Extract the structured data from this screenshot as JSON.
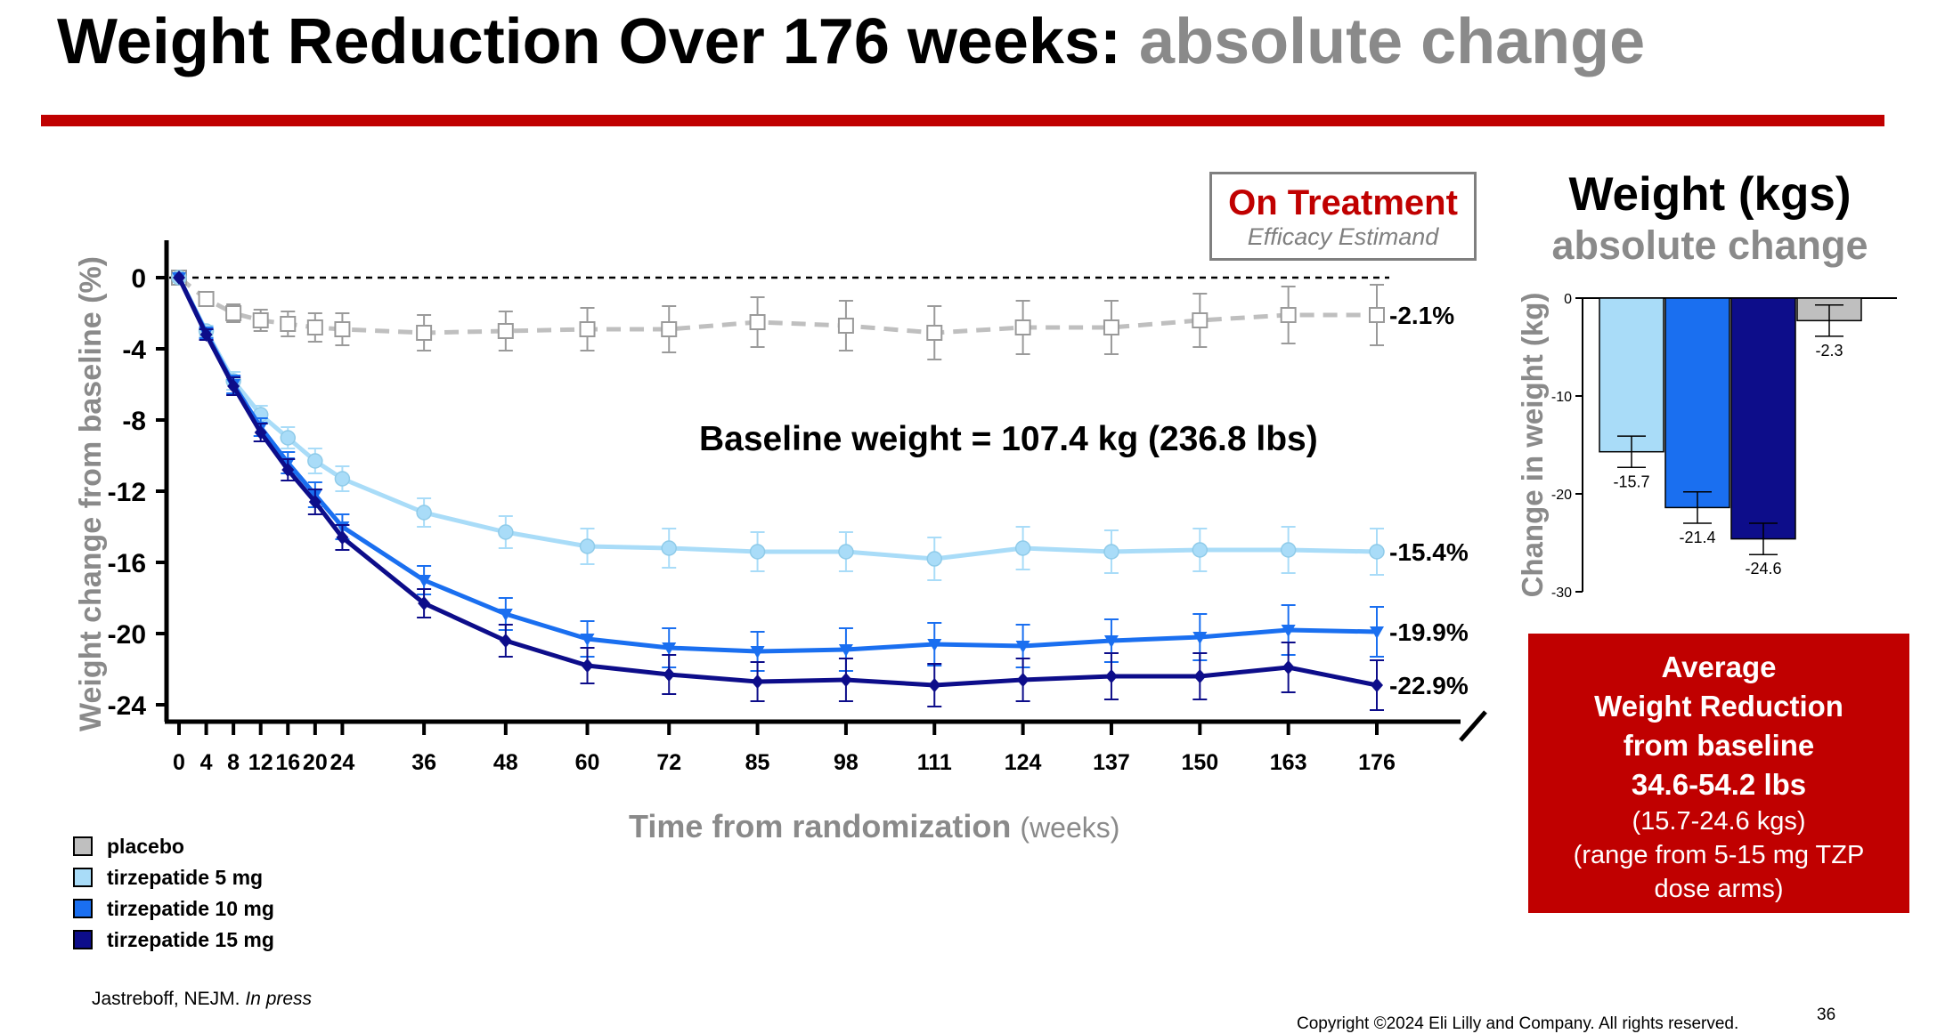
{
  "title": {
    "main": "Weight Reduction Over 176 weeks:",
    "sub": "absolute change"
  },
  "colors": {
    "accent": "#c00000",
    "placebo": "#bfbfbf",
    "tzp5": "#a9dcf8",
    "tzp10": "#1a6ff0",
    "tzp15": "#0d0d8a",
    "title_grey": "#8a8a8a"
  },
  "treatment_box": {
    "main": "On Treatment",
    "sub": "Efficacy Estimand"
  },
  "baseline_note": "Baseline weight = 107.4 kg (236.8 lbs)",
  "x_axis_title": {
    "main": "Time from randomization",
    "unit": "(weeks)"
  },
  "legend": [
    {
      "label": "placebo",
      "color": "#bfbfbf"
    },
    {
      "label": "tirzepatide  5 mg",
      "color": "#a9dcf8"
    },
    {
      "label": "tirzepatide  10 mg",
      "color": "#1a6ff0"
    },
    {
      "label": "tirzepatide  15 mg",
      "color": "#0d0d8a"
    }
  ],
  "side_title": {
    "main": "Weight (kgs)",
    "sub": "absolute change"
  },
  "summary": {
    "line1": "Average",
    "line2": "Weight Reduction",
    "line3": "from baseline",
    "line4": "34.6-54.2 lbs",
    "line5": "(15.7-24.6 kgs)",
    "line6": "(range from 5-15 mg TZP",
    "line7": "dose arms)"
  },
  "citation": {
    "author": "Jastreboff, NEJM.",
    "status": "In press"
  },
  "copyright": "Copyright ©2024 Eli Lilly and Company. All rights reserved.",
  "page_number": "36",
  "chart_data": [
    {
      "type": "line",
      "title": "",
      "xlabel": "Time from randomization (weeks)",
      "ylabel": "Weight change from baseline (%)",
      "ylim": [
        -26,
        1
      ],
      "y_ticks": [
        0,
        -4,
        -8,
        -12,
        -16,
        -20,
        -24
      ],
      "y_tick_labels": [
        "0",
        "-4",
        "-8",
        "-12",
        "-16",
        "-20",
        "-24"
      ],
      "x": [
        0,
        4,
        8,
        12,
        16,
        20,
        24,
        36,
        48,
        60,
        72,
        85,
        98,
        111,
        124,
        137,
        150,
        163,
        176
      ],
      "x_tick_labels": [
        "0",
        "4",
        "8",
        "12",
        "16",
        "20",
        "24",
        "36",
        "48",
        "60",
        "72",
        "85",
        "98",
        "111",
        "124",
        "137",
        "150",
        "163",
        "176"
      ],
      "reference_line": 0,
      "series": [
        {
          "name": "placebo",
          "color": "#bfbfbf",
          "dashed": true,
          "marker": "square-open",
          "values": [
            0,
            -1.2,
            -2.0,
            -2.4,
            -2.6,
            -2.8,
            -2.9,
            -3.1,
            -3.0,
            -2.9,
            -2.9,
            -2.5,
            -2.7,
            -3.1,
            -2.8,
            -2.8,
            -2.4,
            -2.1,
            -2.1
          ],
          "errors": [
            0,
            0.4,
            0.5,
            0.6,
            0.7,
            0.8,
            0.9,
            1.0,
            1.1,
            1.2,
            1.3,
            1.4,
            1.4,
            1.5,
            1.5,
            1.5,
            1.5,
            1.6,
            1.7
          ],
          "end_label": "-2.1%"
        },
        {
          "name": "tirzepatide  5 mg",
          "color": "#a9dcf8",
          "dashed": false,
          "marker": "circle",
          "values": [
            0,
            -3.0,
            -5.8,
            -7.7,
            -9.0,
            -10.3,
            -11.3,
            -13.2,
            -14.3,
            -15.1,
            -15.2,
            -15.4,
            -15.4,
            -15.8,
            -15.2,
            -15.4,
            -15.3,
            -15.3,
            -15.4
          ],
          "errors": [
            0,
            0.3,
            0.5,
            0.5,
            0.6,
            0.7,
            0.7,
            0.8,
            0.9,
            1.0,
            1.1,
            1.1,
            1.1,
            1.2,
            1.2,
            1.2,
            1.2,
            1.3,
            1.3
          ],
          "end_label": "-15.4%"
        },
        {
          "name": "tirzepatide  10 mg",
          "color": "#1a6ff0",
          "dashed": false,
          "marker": "triangle-down",
          "values": [
            0,
            -3.1,
            -6.0,
            -8.4,
            -10.4,
            -12.2,
            -14.0,
            -17.0,
            -18.9,
            -20.3,
            -20.8,
            -21.0,
            -20.9,
            -20.6,
            -20.7,
            -20.4,
            -20.2,
            -19.8,
            -19.9
          ],
          "errors": [
            0,
            0.3,
            0.5,
            0.5,
            0.6,
            0.7,
            0.7,
            0.8,
            0.9,
            1.0,
            1.1,
            1.1,
            1.2,
            1.2,
            1.2,
            1.2,
            1.3,
            1.4,
            1.4
          ],
          "end_label": "-19.9%"
        },
        {
          "name": "tirzepatide  15 mg",
          "color": "#0d0d8a",
          "dashed": false,
          "marker": "diamond",
          "values": [
            0,
            -3.2,
            -6.1,
            -8.7,
            -10.8,
            -12.6,
            -14.6,
            -18.3,
            -20.4,
            -21.8,
            -22.3,
            -22.7,
            -22.6,
            -22.9,
            -22.6,
            -22.4,
            -22.4,
            -21.9,
            -22.9
          ],
          "errors": [
            0,
            0.3,
            0.5,
            0.5,
            0.6,
            0.7,
            0.7,
            0.8,
            0.9,
            1.0,
            1.1,
            1.1,
            1.2,
            1.2,
            1.2,
            1.3,
            1.3,
            1.4,
            1.4
          ],
          "end_label": "-22.9%"
        }
      ]
    },
    {
      "type": "bar",
      "title": "",
      "ylabel": "Change in weight (kg)",
      "ylim": [
        -30,
        0
      ],
      "y_ticks": [
        0,
        -10,
        -20,
        -30
      ],
      "y_tick_labels": [
        "0",
        "-10",
        "-20",
        "-30"
      ],
      "categories": [
        "tirzepatide  5 mg",
        "tirzepatide  10 mg",
        "tirzepatide  15 mg",
        "placebo"
      ],
      "values": [
        -15.7,
        -21.4,
        -24.6,
        -2.3
      ],
      "errors": [
        1.6,
        1.6,
        1.6,
        1.6
      ],
      "value_labels": [
        "-15.7",
        "-21.4",
        "-24.6",
        "-2.3"
      ],
      "colors": [
        "#a9dcf8",
        "#1a6ff0",
        "#0d0d8a",
        "#bfbfbf"
      ]
    }
  ]
}
